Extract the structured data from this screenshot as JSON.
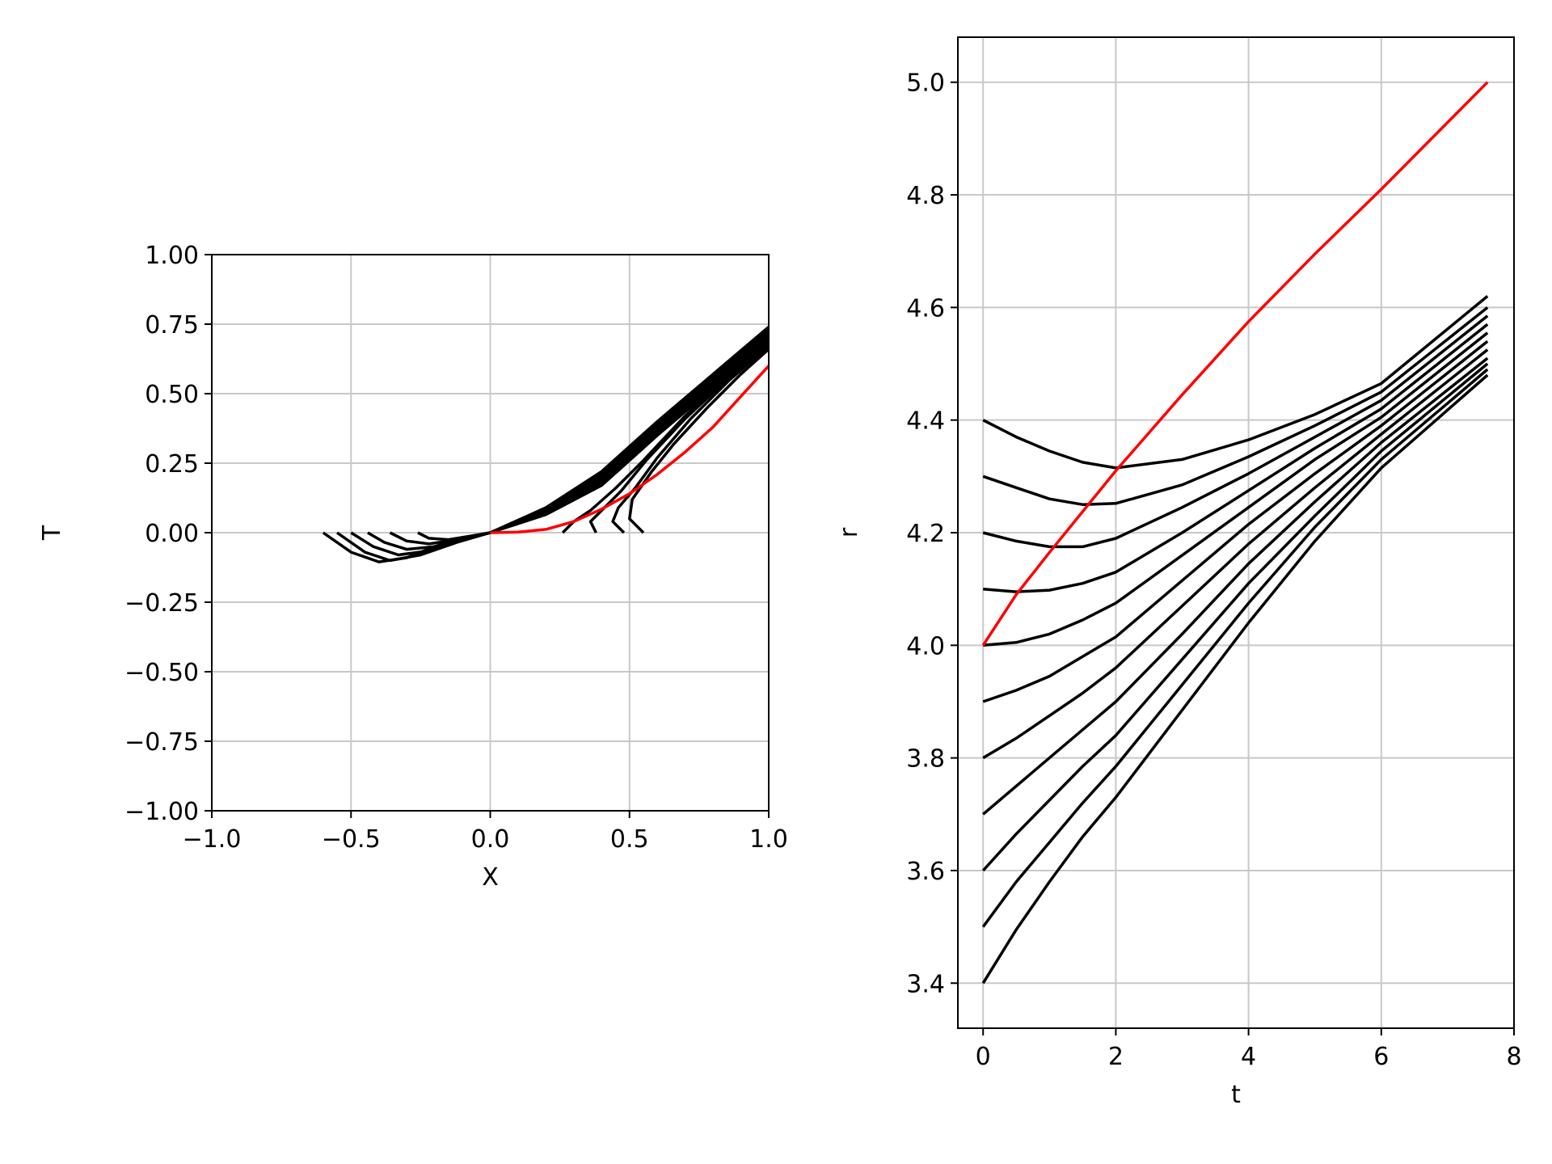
{
  "chart_data": [
    {
      "type": "line",
      "xlabel": "X",
      "ylabel": "T",
      "xlim": [
        -1.0,
        1.0
      ],
      "ylim": [
        -1.0,
        1.0
      ],
      "grid": true,
      "xticks": [
        -1.0,
        -0.5,
        0.0,
        0.5,
        1.0
      ],
      "xtick_labels": [
        "−1.0",
        "−0.5",
        "0.0",
        "0.5",
        "1.0"
      ],
      "yticks": [
        -1.0,
        -0.75,
        -0.5,
        -0.25,
        0.0,
        0.25,
        0.5,
        0.75,
        1.0
      ],
      "ytick_labels": [
        "−1.00",
        "−0.75",
        "−0.50",
        "−0.25",
        "0.00",
        "0.25",
        "0.50",
        "0.75",
        "1.00"
      ],
      "series": [
        {
          "color": "#000000",
          "points": [
            [
              -0.6,
              0
            ],
            [
              -0.5,
              -0.07
            ],
            [
              -0.4,
              -0.105
            ],
            [
              -0.3,
              -0.09
            ],
            [
              -0.2,
              -0.05
            ],
            [
              -0.1,
              -0.02
            ],
            [
              0,
              0
            ],
            [
              0.2,
              0.09
            ],
            [
              0.4,
              0.22
            ],
            [
              0.6,
              0.4
            ],
            [
              0.8,
              0.57
            ],
            [
              1.0,
              0.74
            ]
          ]
        },
        {
          "color": "#000000",
          "points": [
            [
              -0.55,
              0
            ],
            [
              -0.45,
              -0.07
            ],
            [
              -0.36,
              -0.1
            ],
            [
              -0.25,
              -0.08
            ],
            [
              -0.12,
              -0.035
            ],
            [
              0,
              0
            ],
            [
              0.2,
              0.085
            ],
            [
              0.4,
              0.21
            ],
            [
              0.6,
              0.39
            ],
            [
              0.8,
              0.56
            ],
            [
              1.0,
              0.73
            ]
          ]
        },
        {
          "color": "#000000",
          "points": [
            [
              -0.5,
              0
            ],
            [
              -0.42,
              -0.05
            ],
            [
              -0.33,
              -0.08
            ],
            [
              -0.22,
              -0.065
            ],
            [
              -0.1,
              -0.025
            ],
            [
              0,
              0
            ],
            [
              0.2,
              0.08
            ],
            [
              0.4,
              0.2
            ],
            [
              0.6,
              0.38
            ],
            [
              0.8,
              0.55
            ],
            [
              1.0,
              0.72
            ]
          ]
        },
        {
          "color": "#000000",
          "points": [
            [
              -0.44,
              0
            ],
            [
              -0.38,
              -0.035
            ],
            [
              -0.3,
              -0.06
            ],
            [
              -0.2,
              -0.05
            ],
            [
              -0.1,
              -0.02
            ],
            [
              0,
              0
            ],
            [
              0.2,
              0.075
            ],
            [
              0.4,
              0.19
            ],
            [
              0.6,
              0.37
            ],
            [
              0.8,
              0.54
            ],
            [
              1.0,
              0.71
            ]
          ]
        },
        {
          "color": "#000000",
          "points": [
            [
              -0.36,
              0
            ],
            [
              -0.3,
              -0.03
            ],
            [
              -0.22,
              -0.04
            ],
            [
              -0.12,
              -0.025
            ],
            [
              0,
              0
            ],
            [
              0.2,
              0.07
            ],
            [
              0.4,
              0.18
            ],
            [
              0.6,
              0.36
            ],
            [
              0.8,
              0.53
            ],
            [
              1.0,
              0.7
            ]
          ]
        },
        {
          "color": "#000000",
          "points": [
            [
              -0.26,
              0
            ],
            [
              -0.22,
              -0.02
            ],
            [
              -0.15,
              -0.025
            ],
            [
              -0.07,
              -0.012
            ],
            [
              0,
              0
            ],
            [
              0.2,
              0.065
            ],
            [
              0.4,
              0.17
            ],
            [
              0.6,
              0.35
            ],
            [
              0.8,
              0.52
            ],
            [
              1.0,
              0.69
            ]
          ]
        },
        {
          "color": "#000000",
          "points": [
            [
              0.26,
              0
            ],
            [
              0.3,
              0.04
            ],
            [
              0.36,
              0.08
            ],
            [
              0.45,
              0.16
            ],
            [
              0.55,
              0.26
            ],
            [
              0.7,
              0.42
            ],
            [
              0.85,
              0.56
            ],
            [
              1.0,
              0.69
            ]
          ]
        },
        {
          "color": "#000000",
          "points": [
            [
              0.38,
              0
            ],
            [
              0.36,
              0.04
            ],
            [
              0.4,
              0.08
            ],
            [
              0.47,
              0.15
            ],
            [
              0.56,
              0.26
            ],
            [
              0.7,
              0.41
            ],
            [
              0.85,
              0.55
            ],
            [
              1.0,
              0.68
            ]
          ]
        },
        {
          "color": "#000000",
          "points": [
            [
              0.48,
              0
            ],
            [
              0.44,
              0.04
            ],
            [
              0.46,
              0.09
            ],
            [
              0.52,
              0.16
            ],
            [
              0.6,
              0.27
            ],
            [
              0.72,
              0.41
            ],
            [
              0.86,
              0.55
            ],
            [
              1.0,
              0.67
            ]
          ]
        },
        {
          "color": "#000000",
          "points": [
            [
              0.55,
              0
            ],
            [
              0.5,
              0.05
            ],
            [
              0.51,
              0.12
            ],
            [
              0.58,
              0.22
            ],
            [
              0.66,
              0.32
            ],
            [
              0.78,
              0.45
            ],
            [
              0.9,
              0.57
            ],
            [
              1.0,
              0.66
            ]
          ]
        },
        {
          "color": "#ff0000",
          "points": [
            [
              0,
              0
            ],
            [
              0.1,
              0.002
            ],
            [
              0.2,
              0.012
            ],
            [
              0.3,
              0.04
            ],
            [
              0.4,
              0.085
            ],
            [
              0.5,
              0.14
            ],
            [
              0.6,
              0.21
            ],
            [
              0.7,
              0.29
            ],
            [
              0.8,
              0.38
            ],
            [
              0.9,
              0.49
            ],
            [
              1.0,
              0.6
            ]
          ]
        }
      ]
    },
    {
      "type": "line",
      "xlabel": "t",
      "ylabel": "r",
      "xlim": [
        -0.38,
        8.0
      ],
      "ylim": [
        3.32,
        5.08
      ],
      "grid": true,
      "xticks": [
        0,
        2,
        4,
        6,
        8
      ],
      "xtick_labels": [
        "0",
        "2",
        "4",
        "6",
        "8"
      ],
      "yticks": [
        3.4,
        3.6,
        3.8,
        4.0,
        4.2,
        4.4,
        4.6,
        4.8,
        5.0
      ],
      "ytick_labels": [
        "3.4",
        "3.6",
        "3.8",
        "4.0",
        "4.2",
        "4.4",
        "4.6",
        "4.8",
        "5.0"
      ],
      "series": [
        {
          "color": "#000000",
          "points": [
            [
              0,
              4.4
            ],
            [
              0.5,
              4.37
            ],
            [
              1,
              4.345
            ],
            [
              1.5,
              4.325
            ],
            [
              2,
              4.315
            ],
            [
              3,
              4.33
            ],
            [
              4,
              4.365
            ],
            [
              5,
              4.41
            ],
            [
              6,
              4.465
            ],
            [
              7.6,
              4.62
            ]
          ]
        },
        {
          "color": "#000000",
          "points": [
            [
              0,
              4.3
            ],
            [
              0.5,
              4.28
            ],
            [
              1,
              4.26
            ],
            [
              1.5,
              4.25
            ],
            [
              2,
              4.252
            ],
            [
              3,
              4.285
            ],
            [
              4,
              4.335
            ],
            [
              5,
              4.39
            ],
            [
              6,
              4.45
            ],
            [
              7.6,
              4.6
            ]
          ]
        },
        {
          "color": "#000000",
          "points": [
            [
              0,
              4.2
            ],
            [
              0.5,
              4.185
            ],
            [
              1,
              4.175
            ],
            [
              1.5,
              4.175
            ],
            [
              2,
              4.19
            ],
            [
              3,
              4.245
            ],
            [
              4,
              4.305
            ],
            [
              5,
              4.37
            ],
            [
              6,
              4.435
            ],
            [
              7.6,
              4.585
            ]
          ]
        },
        {
          "color": "#000000",
          "points": [
            [
              0,
              4.1
            ],
            [
              0.5,
              4.095
            ],
            [
              1,
              4.098
            ],
            [
              1.5,
              4.11
            ],
            [
              2,
              4.13
            ],
            [
              3,
              4.2
            ],
            [
              4,
              4.275
            ],
            [
              5,
              4.35
            ],
            [
              6,
              4.42
            ],
            [
              7.6,
              4.57
            ]
          ]
        },
        {
          "color": "#000000",
          "points": [
            [
              0,
              4.0
            ],
            [
              0.5,
              4.005
            ],
            [
              1,
              4.02
            ],
            [
              1.5,
              4.045
            ],
            [
              2,
              4.075
            ],
            [
              3,
              4.16
            ],
            [
              4,
              4.245
            ],
            [
              5,
              4.33
            ],
            [
              6,
              4.405
            ],
            [
              7.6,
              4.555
            ]
          ]
        },
        {
          "color": "#000000",
          "points": [
            [
              0,
              3.9
            ],
            [
              0.5,
              3.92
            ],
            [
              1,
              3.945
            ],
            [
              1.5,
              3.98
            ],
            [
              2,
              4.015
            ],
            [
              3,
              4.115
            ],
            [
              4,
              4.215
            ],
            [
              5,
              4.305
            ],
            [
              6,
              4.39
            ],
            [
              7.6,
              4.54
            ]
          ]
        },
        {
          "color": "#000000",
          "points": [
            [
              0,
              3.8
            ],
            [
              0.5,
              3.835
            ],
            [
              1,
              3.875
            ],
            [
              1.5,
              3.915
            ],
            [
              2,
              3.96
            ],
            [
              3,
              4.07
            ],
            [
              4,
              4.18
            ],
            [
              5,
              4.28
            ],
            [
              6,
              4.375
            ],
            [
              7.6,
              4.525
            ]
          ]
        },
        {
          "color": "#000000",
          "points": [
            [
              0,
              3.7
            ],
            [
              0.5,
              3.75
            ],
            [
              1,
              3.8
            ],
            [
              1.5,
              3.85
            ],
            [
              2,
              3.9
            ],
            [
              3,
              4.02
            ],
            [
              4,
              4.145
            ],
            [
              5,
              4.255
            ],
            [
              6,
              4.36
            ],
            [
              7.6,
              4.51
            ]
          ]
        },
        {
          "color": "#000000",
          "points": [
            [
              0,
              3.6
            ],
            [
              0.5,
              3.665
            ],
            [
              1,
              3.725
            ],
            [
              1.5,
              3.785
            ],
            [
              2,
              3.84
            ],
            [
              3,
              3.975
            ],
            [
              4,
              4.11
            ],
            [
              5,
              4.23
            ],
            [
              6,
              4.345
            ],
            [
              7.6,
              4.5
            ]
          ]
        },
        {
          "color": "#000000",
          "points": [
            [
              0,
              3.5
            ],
            [
              0.5,
              3.58
            ],
            [
              1,
              3.65
            ],
            [
              1.5,
              3.72
            ],
            [
              2,
              3.785
            ],
            [
              3,
              3.93
            ],
            [
              4,
              4.075
            ],
            [
              5,
              4.21
            ],
            [
              6,
              4.33
            ],
            [
              7.6,
              4.49
            ]
          ]
        },
        {
          "color": "#000000",
          "points": [
            [
              0,
              3.4
            ],
            [
              0.5,
              3.495
            ],
            [
              1,
              3.58
            ],
            [
              1.5,
              3.66
            ],
            [
              2,
              3.73
            ],
            [
              3,
              3.885
            ],
            [
              4,
              4.04
            ],
            [
              5,
              4.185
            ],
            [
              6,
              4.315
            ],
            [
              7.6,
              4.48
            ]
          ]
        },
        {
          "color": "#ff0000",
          "points": [
            [
              0,
              4.0
            ],
            [
              0.5,
              4.09
            ],
            [
              1,
              4.165
            ],
            [
              2,
              4.31
            ],
            [
              3,
              4.445
            ],
            [
              4,
              4.575
            ],
            [
              5,
              4.695
            ],
            [
              6,
              4.81
            ],
            [
              7.6,
              5.0
            ]
          ]
        }
      ]
    }
  ]
}
